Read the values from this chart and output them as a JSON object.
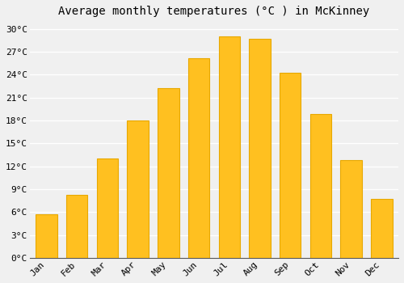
{
  "title": "Average monthly temperatures (°C ) in McKinney",
  "months": [
    "Jan",
    "Feb",
    "Mar",
    "Apr",
    "May",
    "Jun",
    "Jul",
    "Aug",
    "Sep",
    "Oct",
    "Nov",
    "Dec"
  ],
  "values": [
    5.7,
    8.2,
    13.0,
    18.0,
    22.2,
    26.2,
    29.0,
    28.7,
    24.3,
    18.8,
    12.8,
    7.7
  ],
  "bar_color": "#FFC020",
  "bar_edge_color": "#E8A800",
  "ylim": [
    0,
    31
  ],
  "yticks": [
    0,
    3,
    6,
    9,
    12,
    15,
    18,
    21,
    24,
    27,
    30
  ],
  "ytick_labels": [
    "0°C",
    "3°C",
    "6°C",
    "9°C",
    "12°C",
    "15°C",
    "18°C",
    "21°C",
    "24°C",
    "27°C",
    "30°C"
  ],
  "background_color": "#f0f0f0",
  "grid_color": "#ffffff",
  "title_fontsize": 10,
  "tick_fontsize": 8,
  "font_family": "monospace"
}
